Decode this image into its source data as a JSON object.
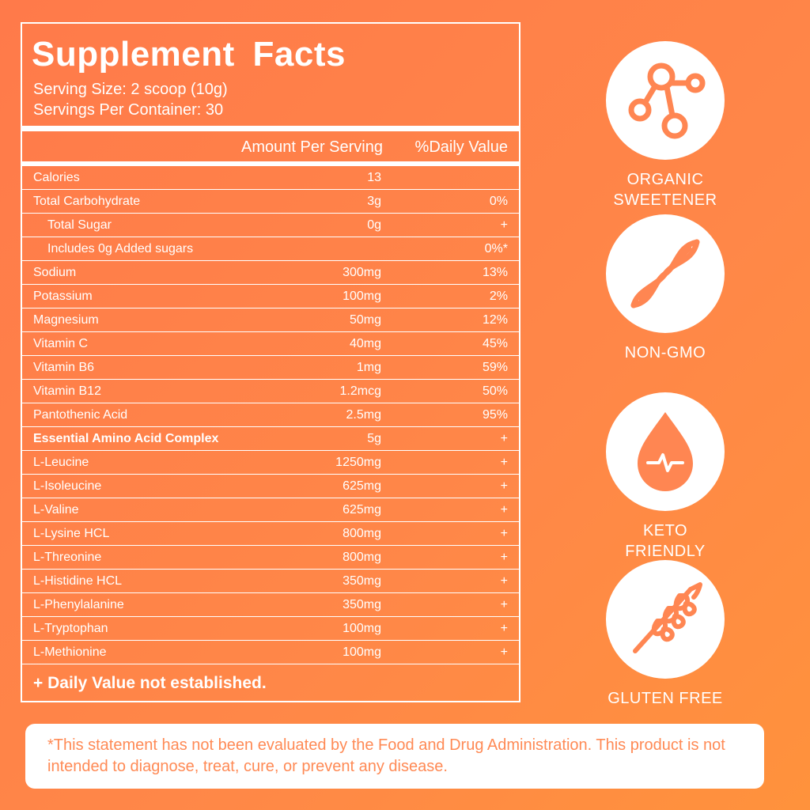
{
  "facts": {
    "title": "Supplement  Facts",
    "serving_size": "Serving Size: 2 scoop (10g)",
    "servings_per_container": "Servings Per Container: 30",
    "header_amount": "Amount Per Serving",
    "header_dv": "%Daily Value",
    "rows": [
      {
        "name": "Calories",
        "amount": "13",
        "dv": ""
      },
      {
        "name": "Total Carbohydrate",
        "amount": "3g",
        "dv": "0%"
      },
      {
        "name": "Total Sugar",
        "amount": "0g",
        "dv": "+"
      },
      {
        "name": "Includes 0g Added sugars",
        "amount": "",
        "dv": "0%*"
      },
      {
        "name": "Sodium",
        "amount": "300mg",
        "dv": "13%"
      },
      {
        "name": "Potassium",
        "amount": "100mg",
        "dv": "2%"
      },
      {
        "name": "Magnesium",
        "amount": "50mg",
        "dv": "12%"
      },
      {
        "name": "Vitamin C",
        "amount": "40mg",
        "dv": "45%"
      },
      {
        "name": "Vitamin B6",
        "amount": "1mg",
        "dv": "59%"
      },
      {
        "name": "Vitamin B12",
        "amount": "1.2mcg",
        "dv": "50%"
      },
      {
        "name": "Pantothenic Acid",
        "amount": "2.5mg",
        "dv": "95%"
      },
      {
        "name": "Essential Amino Acid Complex",
        "amount": "5g",
        "dv": "+"
      },
      {
        "name": "L-Leucine",
        "amount": "1250mg",
        "dv": "+"
      },
      {
        "name": "L-Isoleucine",
        "amount": "625mg",
        "dv": "+"
      },
      {
        "name": "L-Valine",
        "amount": "625mg",
        "dv": "+"
      },
      {
        "name": "L-Lysine HCL",
        "amount": "800mg",
        "dv": "+"
      },
      {
        "name": "L-Threonine",
        "amount": "800mg",
        "dv": "+"
      },
      {
        "name": "L-Histidine HCL",
        "amount": "350mg",
        "dv": "+"
      },
      {
        "name": "L-Phenylalanine",
        "amount": "350mg",
        "dv": "+"
      },
      {
        "name": "L-Tryptophan",
        "amount": "100mg",
        "dv": "+"
      },
      {
        "name": "L-Methionine",
        "amount": "100mg",
        "dv": "+"
      }
    ],
    "footnote": "+ Daily Value not established."
  },
  "badges": [
    {
      "icon": "molecule-icon",
      "label_line1": "ORGANIC",
      "label_line2": "SWEETENER"
    },
    {
      "icon": "dna-icon",
      "label_line1": "NON-GMO",
      "label_line2": ""
    },
    {
      "icon": "drop-pulse-icon",
      "label_line1": "KETO FRIENDLY",
      "label_line2": ""
    },
    {
      "icon": "wheat-icon",
      "label_line1": "GLUTEN FREE",
      "label_line2": ""
    }
  ],
  "disclaimer": "*This statement has not been evaluated by the Food and Drug Administration. This product is not intended to diagnose, treat, cure, or prevent any disease.",
  "colors": {
    "background": "#ff7f47",
    "icon_accent": "#ff8652",
    "panel_border": "#ffffff"
  }
}
